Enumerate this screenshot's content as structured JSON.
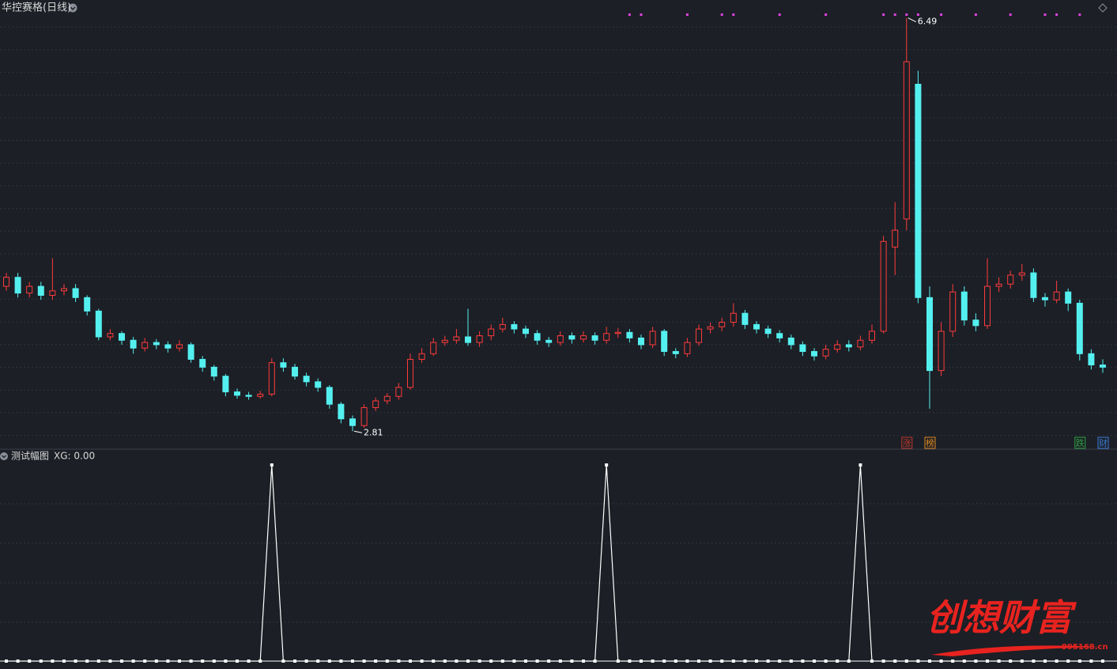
{
  "header": {
    "title": "华控赛格(日线)"
  },
  "chart_data": [
    {
      "type": "candlestick",
      "ylim": [
        2.65,
        6.65
      ],
      "up_color": "#ff3b3b",
      "down_color": "#54f0f0",
      "signal_color": "#e040e0",
      "open": [
        4.1,
        4.18,
        4.04,
        4.1,
        4.02,
        4.06,
        4.08,
        4.0,
        3.88,
        3.65,
        3.68,
        3.62,
        3.55,
        3.6,
        3.58,
        3.55,
        3.58,
        3.45,
        3.38,
        3.3,
        3.16,
        3.13,
        3.12,
        3.14,
        3.42,
        3.38,
        3.3,
        3.25,
        3.2,
        3.05,
        2.92,
        2.86,
        3.02,
        3.08,
        3.12,
        3.2,
        3.45,
        3.5,
        3.6,
        3.62,
        3.65,
        3.6,
        3.66,
        3.72,
        3.76,
        3.72,
        3.68,
        3.62,
        3.6,
        3.66,
        3.63,
        3.66,
        3.62,
        3.68,
        3.69,
        3.64,
        3.58,
        3.7,
        3.52,
        3.5,
        3.6,
        3.72,
        3.74,
        3.78,
        3.86,
        3.76,
        3.72,
        3.68,
        3.64,
        3.58,
        3.52,
        3.48,
        3.54,
        3.58,
        3.56,
        3.62,
        3.7,
        4.45,
        4.7,
        5.9,
        4.0,
        3.35,
        3.7,
        4.05,
        3.8,
        3.75,
        4.1,
        4.12,
        4.2,
        4.22,
        4.0,
        3.98,
        4.05,
        3.95,
        3.5,
        3.4
      ],
      "high": [
        4.22,
        4.22,
        4.14,
        4.14,
        4.35,
        4.12,
        4.12,
        4.02,
        3.9,
        3.72,
        3.7,
        3.65,
        3.64,
        3.63,
        3.61,
        3.62,
        3.6,
        3.48,
        3.4,
        3.32,
        3.19,
        3.16,
        3.17,
        3.46,
        3.46,
        3.41,
        3.33,
        3.28,
        3.22,
        3.07,
        2.95,
        3.05,
        3.11,
        3.15,
        3.24,
        3.5,
        3.55,
        3.64,
        3.66,
        3.72,
        3.9,
        3.7,
        3.76,
        3.82,
        3.79,
        3.75,
        3.71,
        3.65,
        3.7,
        3.69,
        3.7,
        3.69,
        3.74,
        3.73,
        3.72,
        3.67,
        3.74,
        3.72,
        3.55,
        3.64,
        3.76,
        3.78,
        3.82,
        3.95,
        3.89,
        3.79,
        3.75,
        3.71,
        3.67,
        3.61,
        3.55,
        3.58,
        3.62,
        3.62,
        3.66,
        3.76,
        4.55,
        4.85,
        6.49,
        6.02,
        4.1,
        3.78,
        4.12,
        4.1,
        3.86,
        4.35,
        4.18,
        4.24,
        4.3,
        4.26,
        4.04,
        4.15,
        4.08,
        3.98,
        3.54,
        3.45
      ],
      "low": [
        4.06,
        4.0,
        4.0,
        3.98,
        3.98,
        4.02,
        3.96,
        3.84,
        3.62,
        3.62,
        3.58,
        3.5,
        3.52,
        3.54,
        3.51,
        3.52,
        3.42,
        3.34,
        3.26,
        3.12,
        3.1,
        3.09,
        3.1,
        3.12,
        3.34,
        3.27,
        3.21,
        3.16,
        3.01,
        2.88,
        2.81,
        2.84,
        2.99,
        3.05,
        3.09,
        3.18,
        3.42,
        3.48,
        3.57,
        3.59,
        3.57,
        3.56,
        3.62,
        3.69,
        3.68,
        3.64,
        3.58,
        3.56,
        3.57,
        3.59,
        3.6,
        3.58,
        3.59,
        3.64,
        3.6,
        3.54,
        3.55,
        3.48,
        3.46,
        3.47,
        3.57,
        3.68,
        3.7,
        3.74,
        3.72,
        3.68,
        3.64,
        3.6,
        3.54,
        3.48,
        3.44,
        3.45,
        3.51,
        3.52,
        3.53,
        3.59,
        3.68,
        4.2,
        4.6,
        3.95,
        3.01,
        3.3,
        3.65,
        3.75,
        3.7,
        3.72,
        4.05,
        4.08,
        4.15,
        3.96,
        3.92,
        3.95,
        3.88,
        3.44,
        3.36,
        3.33
      ],
      "close": [
        4.18,
        4.04,
        4.1,
        4.02,
        4.06,
        4.08,
        4.0,
        3.88,
        3.65,
        3.68,
        3.62,
        3.55,
        3.6,
        3.58,
        3.55,
        3.58,
        3.45,
        3.38,
        3.3,
        3.16,
        3.13,
        3.12,
        3.14,
        3.42,
        3.38,
        3.3,
        3.25,
        3.2,
        3.05,
        2.92,
        2.86,
        3.02,
        3.08,
        3.12,
        3.2,
        3.45,
        3.5,
        3.6,
        3.62,
        3.65,
        3.6,
        3.66,
        3.72,
        3.76,
        3.72,
        3.68,
        3.62,
        3.6,
        3.66,
        3.63,
        3.66,
        3.62,
        3.68,
        3.69,
        3.64,
        3.58,
        3.7,
        3.52,
        3.5,
        3.6,
        3.72,
        3.74,
        3.78,
        3.86,
        3.76,
        3.72,
        3.68,
        3.64,
        3.58,
        3.52,
        3.48,
        3.54,
        3.58,
        3.56,
        3.62,
        3.7,
        4.5,
        4.6,
        6.1,
        4.0,
        3.35,
        3.7,
        4.05,
        3.8,
        3.75,
        4.1,
        4.12,
        4.2,
        4.22,
        4.0,
        3.98,
        4.05,
        3.95,
        3.5,
        3.4,
        3.38
      ],
      "signals": [
        54,
        55,
        59,
        62,
        63,
        67,
        71,
        76,
        77,
        78,
        79,
        81,
        84,
        87,
        90,
        91,
        93
      ],
      "max_index": 78,
      "min_index": 30,
      "badges": [
        {
          "text": "涨",
          "color": "#c0392b",
          "index": 78
        },
        {
          "text": "榜",
          "color": "#e08a1e",
          "index": 80
        },
        {
          "text": "跌",
          "color": "#2ea043",
          "index": 93
        },
        {
          "text": "财",
          "color": "#3b7dd8",
          "index": 95
        }
      ]
    },
    {
      "type": "line",
      "title": "测试幅图",
      "legend": "XG: 0.00",
      "color": "#ffffff",
      "ylim": [
        0,
        1
      ],
      "values": [
        0,
        0,
        0,
        0,
        0,
        0,
        0,
        0,
        0,
        0,
        0,
        0,
        0,
        0,
        0,
        0,
        0,
        0,
        0,
        0,
        0,
        0,
        0,
        1,
        0,
        0,
        0,
        0,
        0,
        0,
        0,
        0,
        0,
        0,
        0,
        0,
        0,
        0,
        0,
        0,
        0,
        0,
        0,
        0,
        0,
        0,
        0,
        0,
        0,
        0,
        0,
        0,
        1,
        0,
        0,
        0,
        0,
        0,
        0,
        0,
        0,
        0,
        0,
        0,
        0,
        0,
        0,
        0,
        0,
        0,
        0,
        0,
        0,
        0,
        1,
        0,
        0,
        0,
        0,
        0,
        0,
        0,
        0,
        0,
        0,
        0,
        0,
        0,
        0,
        0,
        0,
        0,
        0,
        0,
        0,
        0
      ]
    }
  ],
  "watermark": {
    "title": "创想财富",
    "url": "995168.cn"
  }
}
